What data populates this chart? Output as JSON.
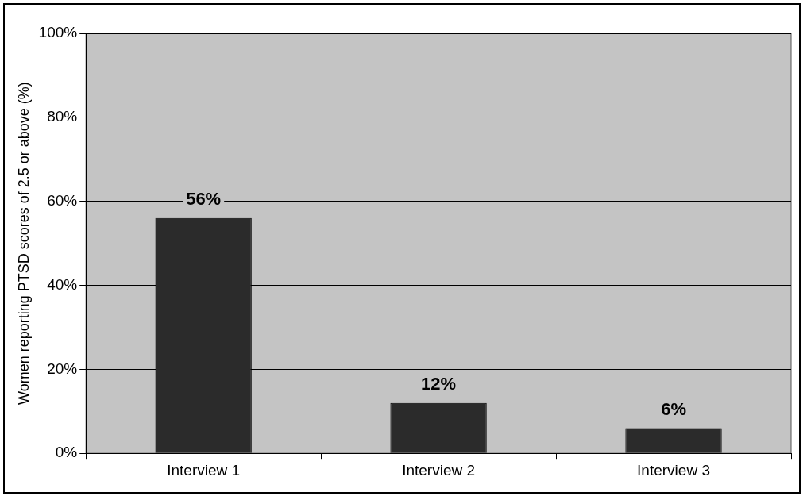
{
  "chart_data": {
    "type": "bar",
    "ylabel": "Women reporting PTSD scores of 2.5 or above (%)",
    "categories": [
      "Interview 1",
      "Interview 2",
      "Interview 3"
    ],
    "values": [
      56,
      12,
      6
    ],
    "value_labels": [
      "56%",
      "12%",
      "6%"
    ],
    "color": "#2b2b2b",
    "ylim": [
      0,
      100
    ],
    "yticks": [
      {
        "value": 0,
        "label": "0%"
      },
      {
        "value": 20,
        "label": "20%"
      },
      {
        "value": 40,
        "label": "40%"
      },
      {
        "value": 60,
        "label": "60%"
      },
      {
        "value": 80,
        "label": "80%"
      },
      {
        "value": 100,
        "label": "100%"
      }
    ],
    "grid": "y"
  }
}
